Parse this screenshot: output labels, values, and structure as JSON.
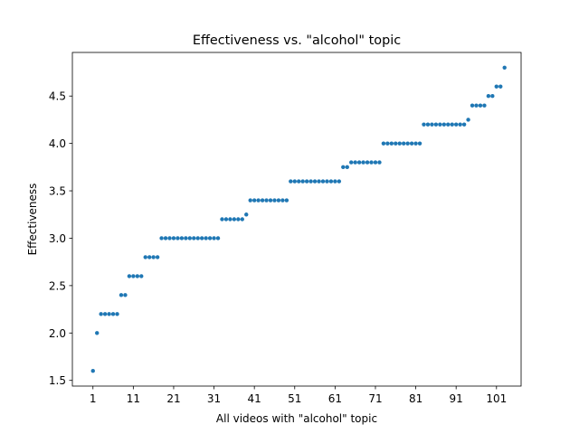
{
  "chart_data": {
    "type": "scatter",
    "title": "Effectiveness vs. \"alcohol\" topic",
    "xlabel": "All videos with \"alcohol\" topic",
    "ylabel": "Effectiveness",
    "xlim": [
      -4.1,
      107.1
    ],
    "ylim": [
      1.44,
      4.96
    ],
    "xticks": [
      1,
      11,
      21,
      31,
      41,
      51,
      61,
      71,
      81,
      91,
      101
    ],
    "yticks": [
      1.5,
      2.0,
      2.5,
      3.0,
      3.5,
      4.0,
      4.5
    ],
    "ytick_labels": [
      "1.5",
      "2.0",
      "2.5",
      "3.0",
      "3.5",
      "4.0",
      "4.5"
    ],
    "grid": false,
    "marker_color": "#1f77b4",
    "values": [
      1.6,
      2.0,
      2.2,
      2.2,
      2.2,
      2.2,
      2.2,
      2.4,
      2.4,
      2.6,
      2.6,
      2.6,
      2.6,
      2.8,
      2.8,
      2.8,
      2.8,
      3.0,
      3.0,
      3.0,
      3.0,
      3.0,
      3.0,
      3.0,
      3.0,
      3.0,
      3.0,
      3.0,
      3.0,
      3.0,
      3.0,
      3.0,
      3.2,
      3.2,
      3.2,
      3.2,
      3.2,
      3.2,
      3.25,
      3.4,
      3.4,
      3.4,
      3.4,
      3.4,
      3.4,
      3.4,
      3.4,
      3.4,
      3.4,
      3.6,
      3.6,
      3.6,
      3.6,
      3.6,
      3.6,
      3.6,
      3.6,
      3.6,
      3.6,
      3.6,
      3.6,
      3.6,
      3.75,
      3.75,
      3.8,
      3.8,
      3.8,
      3.8,
      3.8,
      3.8,
      3.8,
      3.8,
      4.0,
      4.0,
      4.0,
      4.0,
      4.0,
      4.0,
      4.0,
      4.0,
      4.0,
      4.0,
      4.2,
      4.2,
      4.2,
      4.2,
      4.2,
      4.2,
      4.2,
      4.2,
      4.2,
      4.2,
      4.2,
      4.25,
      4.4,
      4.4,
      4.4,
      4.4,
      4.5,
      4.5,
      4.6,
      4.6,
      4.8
    ]
  }
}
